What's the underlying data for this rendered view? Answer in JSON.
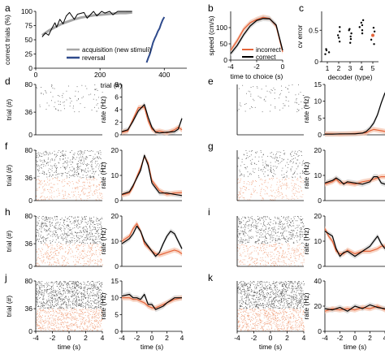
{
  "colors": {
    "acquisition": "#a6a6a6",
    "reversal": "#2e4a8c",
    "correct": "#000000",
    "incorrect": "#e5643a",
    "sem": "#cfcfcf",
    "raster_correct": "#555555",
    "raster_incorrect": "#f0a07c"
  },
  "panel_labels": [
    "a",
    "b",
    "c",
    "d",
    "e",
    "f",
    "g",
    "h",
    "i",
    "j",
    "k"
  ],
  "chart_data": [
    {
      "panel": "a",
      "type": "line",
      "xlabel": "trial (#)",
      "ylabel": "correct trials (%)",
      "xlim": [
        0,
        470
      ],
      "ylim": [
        0,
        100
      ],
      "xticks": [
        0,
        200,
        400
      ],
      "yticks": [
        0,
        25,
        50,
        75,
        100
      ],
      "series": [
        {
          "name": "acquisition (new stimuli)",
          "color_key": "acquisition",
          "x": [
            20,
            40,
            60,
            80,
            100,
            120,
            140,
            160,
            180,
            200,
            220,
            240,
            260,
            280,
            300
          ],
          "y": [
            58,
            66,
            72,
            78,
            82,
            86,
            89,
            91,
            93,
            94,
            95,
            96,
            97,
            97,
            98
          ]
        },
        {
          "name": "",
          "color_key": "correct",
          "x": [
            20,
            30,
            40,
            50,
            60,
            65,
            75,
            85,
            95,
            105,
            120,
            130,
            150,
            160,
            180,
            190,
            205,
            215,
            230,
            240,
            255,
            265,
            285,
            300
          ],
          "y": [
            55,
            62,
            58,
            70,
            80,
            72,
            86,
            78,
            92,
            98,
            86,
            95,
            98,
            88,
            100,
            92,
            100,
            97,
            100,
            94,
            100,
            100,
            100,
            100
          ]
        },
        {
          "name": "reversal",
          "color_key": "reversal",
          "x": [
            345,
            350,
            355,
            360,
            365,
            370,
            375,
            380,
            385,
            390,
            395,
            400
          ],
          "y": [
            10,
            18,
            25,
            35,
            45,
            52,
            58,
            65,
            70,
            78,
            85,
            90
          ]
        }
      ]
    },
    {
      "panel": "b",
      "type": "line",
      "xlabel": "time to choice (s)",
      "ylabel": "speed (cm/s)",
      "xlim": [
        -4,
        0
      ],
      "ylim": [
        0,
        150
      ],
      "xticks": [
        -4,
        -2,
        0
      ],
      "yticks": [
        0,
        50,
        100,
        150
      ],
      "series": [
        {
          "name": "incorrect",
          "color_key": "incorrect",
          "x": [
            -4,
            -3.5,
            -3,
            -2.5,
            -2,
            -1.5,
            -1,
            -0.5,
            0
          ],
          "y": [
            30,
            60,
            95,
            115,
            125,
            132,
            128,
            105,
            25
          ]
        },
        {
          "name": "correct",
          "color_key": "correct",
          "x": [
            -4,
            -3.5,
            -3,
            -2.5,
            -2,
            -1.5,
            -1,
            -0.5,
            0
          ],
          "y": [
            20,
            45,
            78,
            105,
            122,
            128,
            127,
            108,
            30
          ]
        }
      ]
    },
    {
      "panel": "c",
      "type": "scatter",
      "xlabel": "decoder (type)",
      "ylabel": "cv error",
      "xlim": [
        0.5,
        5.5
      ],
      "ylim": [
        0,
        0.8
      ],
      "xticks": [
        1,
        2,
        3,
        4,
        5
      ],
      "yticks": [
        0,
        0.5
      ],
      "x": [
        1,
        1,
        1,
        1,
        2,
        2,
        2,
        2,
        2,
        3,
        3,
        3,
        3,
        3,
        3,
        4,
        4,
        4,
        4,
        4,
        4,
        5,
        5,
        5,
        5,
        5
      ],
      "y": [
        0.12,
        0.15,
        0.18,
        0.2,
        0.32,
        0.38,
        0.42,
        0.48,
        0.55,
        0.3,
        0.36,
        0.4,
        0.45,
        0.5,
        0.52,
        0.45,
        0.5,
        0.55,
        0.58,
        0.62,
        0.66,
        0.28,
        0.35,
        0.42,
        0.48,
        0.54
      ],
      "highlight": {
        "x": 5,
        "y": 0.42
      }
    },
    {
      "panel": "d",
      "type": "line",
      "xlabel": "",
      "ylabel": "rate (Hz)",
      "xlim": [
        -4,
        4
      ],
      "ylim": [
        0,
        8
      ],
      "yticks": [
        0,
        2,
        4,
        6,
        8
      ],
      "raster": {
        "ylabel": "trial (#)",
        "yticks": [
          0,
          36,
          80
        ],
        "density_correct": 0.06,
        "density_incorrect": 0.0
      },
      "series": [
        {
          "name": "correct",
          "color_key": "correct",
          "x": [
            -4,
            -3.2,
            -2.5,
            -1.8,
            -1,
            -0.5,
            0,
            0.5,
            1,
            2,
            3,
            3.5,
            4
          ],
          "y": [
            0.5,
            0.8,
            2.2,
            3.8,
            4.8,
            2.8,
            1.2,
            0.4,
            0.3,
            0.4,
            0.5,
            0.9,
            2.6
          ]
        },
        {
          "name": "incorrect",
          "color_key": "incorrect",
          "x": [
            -4,
            -3.2,
            -2.5,
            -1.8,
            -1,
            -0.5,
            0,
            0.5,
            1,
            2,
            3,
            3.5,
            4
          ],
          "y": [
            0.4,
            0.6,
            2.5,
            4.3,
            4.4,
            2.2,
            0.9,
            0.5,
            0.6,
            0.3,
            0.8,
            1.2,
            0.8
          ]
        }
      ]
    },
    {
      "panel": "e",
      "type": "line",
      "xlabel": "",
      "ylabel": "rate (Hz)",
      "xlim": [
        -4,
        4
      ],
      "ylim": [
        0,
        15
      ],
      "yticks": [
        0,
        5,
        10,
        15
      ],
      "raster": {
        "ylabel": "",
        "yticks": [],
        "density_correct": 0.05,
        "density_incorrect": 0.0
      },
      "series": [
        {
          "name": "correct",
          "color_key": "correct",
          "x": [
            -4,
            -3,
            -2,
            -1,
            0,
            1,
            1.5,
            2,
            2.5,
            3,
            3.5,
            4
          ],
          "y": [
            0.2,
            0.2,
            0.3,
            0.3,
            0.3,
            0.5,
            1,
            2,
            3.5,
            6,
            9.5,
            12.5
          ]
        },
        {
          "name": "incorrect",
          "color_key": "incorrect",
          "x": [
            -4,
            -3,
            -2,
            -1,
            0,
            1,
            1.5,
            2,
            2.5,
            3,
            3.5,
            4
          ],
          "y": [
            0.3,
            0.3,
            0.2,
            0.3,
            0.4,
            0.5,
            0.6,
            1.2,
            1.6,
            1.4,
            1.2,
            1.0
          ]
        }
      ]
    },
    {
      "panel": "f",
      "type": "line",
      "xlabel": "",
      "ylabel": "rate (Hz)",
      "xlim": [
        -4,
        4
      ],
      "ylim": [
        0,
        20
      ],
      "yticks": [
        0,
        10,
        20
      ],
      "raster": {
        "ylabel": "trial (#)",
        "yticks": [
          0,
          36,
          80
        ],
        "density_correct": 0.22,
        "density_incorrect": 0.18
      },
      "series": [
        {
          "name": "correct",
          "color_key": "correct",
          "x": [
            -4,
            -3,
            -2.5,
            -2,
            -1.5,
            -1,
            -0.5,
            0,
            0.5,
            1,
            2,
            3,
            4
          ],
          "y": [
            2.5,
            3.5,
            6,
            9,
            12,
            18,
            14,
            7,
            5,
            3,
            3,
            2.5,
            2
          ]
        },
        {
          "name": "incorrect",
          "color_key": "incorrect",
          "x": [
            -4,
            -3,
            -2.5,
            -2,
            -1.5,
            -1,
            -0.5,
            0,
            0.5,
            1,
            2,
            3,
            4
          ],
          "y": [
            2.2,
            3,
            5.5,
            9.5,
            13,
            17.5,
            15,
            8,
            6,
            4,
            2.5,
            3,
            3.2
          ]
        }
      ]
    },
    {
      "panel": "g",
      "type": "line",
      "xlabel": "",
      "ylabel": "rate (Hz)",
      "xlim": [
        -4,
        4
      ],
      "ylim": [
        0,
        20
      ],
      "yticks": [
        0,
        10,
        20
      ],
      "raster": {
        "ylabel": "",
        "yticks": [],
        "density_correct": 0.12,
        "density_incorrect": 0.14
      },
      "series": [
        {
          "name": "correct",
          "color_key": "correct",
          "x": [
            -4,
            -3,
            -2.5,
            -2,
            -1.5,
            -1,
            0,
            1,
            2,
            2.5,
            3,
            3.5,
            4
          ],
          "y": [
            7,
            8,
            9,
            8,
            6.5,
            7.5,
            7,
            6.5,
            7.5,
            9.5,
            9.5,
            7,
            6.5
          ]
        },
        {
          "name": "incorrect",
          "color_key": "incorrect",
          "x": [
            -4,
            -3,
            -2.5,
            -2,
            -1.5,
            -1,
            0,
            1,
            2,
            2.5,
            3,
            3.5,
            4
          ],
          "y": [
            6.5,
            7.5,
            8.5,
            7,
            7,
            7,
            6.5,
            7.5,
            8,
            8.5,
            9,
            9.5,
            9.5
          ]
        }
      ]
    },
    {
      "panel": "h",
      "type": "line",
      "xlabel": "",
      "ylabel": "rate (Hz)",
      "xlim": [
        -4,
        4
      ],
      "ylim": [
        0,
        20
      ],
      "yticks": [
        0,
        10,
        20
      ],
      "raster": {
        "ylabel": "trial (#)",
        "yticks": [
          0,
          36,
          80
        ],
        "density_correct": 0.3,
        "density_incorrect": 0.25
      },
      "series": [
        {
          "name": "correct",
          "color_key": "correct",
          "x": [
            -4,
            -3,
            -2.5,
            -2,
            -1.5,
            -1,
            0,
            0.5,
            1,
            1.5,
            2,
            2.5,
            3,
            3.5,
            4
          ],
          "y": [
            9,
            11,
            13,
            16,
            14,
            10,
            6,
            4,
            5.5,
            9,
            12,
            14,
            13,
            10,
            7
          ]
        },
        {
          "name": "incorrect",
          "color_key": "incorrect",
          "x": [
            -4,
            -3,
            -2.5,
            -2,
            -1.5,
            -1,
            0,
            0.5,
            1,
            1.5,
            2,
            2.5,
            3,
            3.5,
            4
          ],
          "y": [
            10,
            12,
            15,
            17,
            14,
            9,
            6,
            5,
            4.5,
            5,
            5.5,
            6,
            6.5,
            6,
            5
          ]
        }
      ]
    },
    {
      "panel": "i",
      "type": "line",
      "xlabel": "",
      "ylabel": "rate (Hz)",
      "xlim": [
        -4,
        4
      ],
      "ylim": [
        0,
        20
      ],
      "yticks": [
        0,
        10,
        20
      ],
      "raster": {
        "ylabel": "",
        "yticks": [],
        "density_correct": 0.28,
        "density_incorrect": 0.22
      },
      "series": [
        {
          "name": "correct",
          "color_key": "correct",
          "x": [
            -4,
            -3.5,
            -3,
            -2.5,
            -2,
            -1.5,
            -1,
            0,
            1,
            2,
            2.5,
            3,
            3.5,
            4
          ],
          "y": [
            14,
            13,
            12,
            7,
            4,
            5.5,
            6,
            4,
            6,
            8,
            10,
            12,
            9,
            7
          ]
        },
        {
          "name": "incorrect",
          "color_key": "incorrect",
          "x": [
            -4,
            -3.5,
            -3,
            -2.5,
            -2,
            -1.5,
            -1,
            0,
            1,
            2,
            2.5,
            3,
            3.5,
            4
          ],
          "y": [
            15,
            12,
            10,
            6,
            5,
            5,
            6.5,
            5,
            6,
            6,
            6.5,
            7,
            8,
            8
          ]
        }
      ]
    },
    {
      "panel": "j",
      "type": "line",
      "xlabel": "time (s)",
      "ylabel": "rate (Hz)",
      "xlim": [
        -4,
        4
      ],
      "ylim": [
        0,
        15
      ],
      "yticks": [
        0,
        5,
        10,
        15
      ],
      "xticks": [
        -4,
        -2,
        0,
        2,
        4
      ],
      "raster": {
        "ylabel": "trial (#)",
        "yticks": [
          0,
          36,
          80
        ],
        "xlabel": "time (s)",
        "density_correct": 0.45,
        "density_incorrect": 0.42
      },
      "series": [
        {
          "name": "correct",
          "color_key": "correct",
          "x": [
            -4,
            -3,
            -2.5,
            -2,
            -1.5,
            -1,
            -0.5,
            0,
            0.5,
            1,
            1.5,
            2,
            3,
            4
          ],
          "y": [
            10.5,
            11,
            10,
            10,
            9.5,
            11,
            8,
            8,
            6.5,
            7,
            7.5,
            8.5,
            10,
            10
          ]
        },
        {
          "name": "incorrect",
          "color_key": "incorrect",
          "x": [
            -4,
            -3,
            -2.5,
            -2,
            -1.5,
            -1,
            -0.5,
            0,
            0.5,
            1,
            1.5,
            2,
            3,
            4
          ],
          "y": [
            10,
            10,
            9.5,
            9.5,
            9,
            8.5,
            7.5,
            7,
            7,
            7.5,
            8,
            8.5,
            9.5,
            10
          ]
        }
      ]
    },
    {
      "panel": "k",
      "type": "line",
      "xlabel": "time (s)",
      "ylabel": "rate (Hz)",
      "xlim": [
        -4,
        4
      ],
      "ylim": [
        0,
        40
      ],
      "yticks": [
        0,
        20,
        40
      ],
      "xticks": [
        -4,
        -2,
        0,
        2,
        4
      ],
      "raster": {
        "ylabel": "",
        "yticks": [],
        "xlabel": "time (s)",
        "density_correct": 0.45,
        "density_incorrect": 0.42
      },
      "series": [
        {
          "name": "correct",
          "color_key": "correct",
          "x": [
            -4,
            -3,
            -2,
            -1,
            0,
            1,
            2,
            3,
            4
          ],
          "y": [
            18,
            17,
            19,
            16,
            20,
            18,
            21,
            19,
            18
          ]
        },
        {
          "name": "incorrect",
          "color_key": "incorrect",
          "x": [
            -4,
            -3,
            -2,
            -1,
            0,
            1,
            2,
            3,
            4
          ],
          "y": [
            16,
            18,
            17,
            18,
            17,
            19,
            18,
            20,
            17
          ]
        }
      ]
    }
  ]
}
